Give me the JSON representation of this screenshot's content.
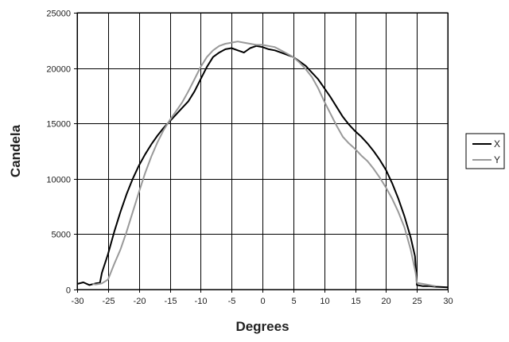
{
  "chart_data": {
    "type": "line",
    "title": "",
    "xlabel": "Degrees",
    "ylabel": "Candela",
    "xlim": [
      -30,
      30
    ],
    "ylim": [
      0,
      25000
    ],
    "x_ticks": [
      -30,
      -25,
      -20,
      -15,
      -10,
      -5,
      0,
      5,
      10,
      15,
      20,
      25,
      30
    ],
    "y_ticks": [
      0,
      5000,
      10000,
      15000,
      20000,
      25000
    ],
    "grid": true,
    "legend_position": "right",
    "series": [
      {
        "name": "X",
        "color": "#000000",
        "points": [
          [
            -30,
            500
          ],
          [
            -29,
            650
          ],
          [
            -28,
            400
          ],
          [
            -27,
            550
          ],
          [
            -26.3,
            600
          ],
          [
            -26,
            1500
          ],
          [
            -25,
            3200
          ],
          [
            -24,
            5200
          ],
          [
            -23,
            7000
          ],
          [
            -22,
            8600
          ],
          [
            -21,
            10000
          ],
          [
            -20,
            11200
          ],
          [
            -19,
            12200
          ],
          [
            -18,
            13100
          ],
          [
            -17,
            13900
          ],
          [
            -16,
            14600
          ],
          [
            -15,
            15200
          ],
          [
            -14,
            15800
          ],
          [
            -13,
            16400
          ],
          [
            -12,
            17000
          ],
          [
            -11,
            17900
          ],
          [
            -10,
            19000
          ],
          [
            -9,
            20100
          ],
          [
            -8,
            21000
          ],
          [
            -7,
            21400
          ],
          [
            -6,
            21700
          ],
          [
            -5,
            21800
          ],
          [
            -4,
            21600
          ],
          [
            -3,
            21400
          ],
          [
            -2,
            21800
          ],
          [
            -1,
            22000
          ],
          [
            0,
            21900
          ],
          [
            1,
            21700
          ],
          [
            2,
            21600
          ],
          [
            3,
            21400
          ],
          [
            4,
            21200
          ],
          [
            5,
            21000
          ],
          [
            6,
            20600
          ],
          [
            7,
            20200
          ],
          [
            8,
            19600
          ],
          [
            9,
            19000
          ],
          [
            10,
            18200
          ],
          [
            11,
            17400
          ],
          [
            12,
            16500
          ],
          [
            13,
            15600
          ],
          [
            14,
            14900
          ],
          [
            15,
            14300
          ],
          [
            16,
            13800
          ],
          [
            17,
            13200
          ],
          [
            18,
            12500
          ],
          [
            19,
            11700
          ],
          [
            20,
            10800
          ],
          [
            21,
            9600
          ],
          [
            22,
            8200
          ],
          [
            23,
            6600
          ],
          [
            24,
            4700
          ],
          [
            24.7,
            3000
          ],
          [
            25,
            400
          ],
          [
            26,
            300
          ],
          [
            27,
            300
          ],
          [
            28,
            250
          ],
          [
            30,
            200
          ]
        ]
      },
      {
        "name": "Y",
        "color": "#999999",
        "points": [
          [
            -27.5,
            500
          ],
          [
            -27,
            450
          ],
          [
            -26,
            550
          ],
          [
            -25,
            900
          ],
          [
            -24,
            2300
          ],
          [
            -23,
            3600
          ],
          [
            -22,
            5200
          ],
          [
            -21,
            7000
          ],
          [
            -20,
            8800
          ],
          [
            -19,
            10500
          ],
          [
            -18,
            12000
          ],
          [
            -17,
            13300
          ],
          [
            -16,
            14400
          ],
          [
            -15,
            15300
          ],
          [
            -14,
            16100
          ],
          [
            -13,
            16900
          ],
          [
            -12,
            17900
          ],
          [
            -11,
            19000
          ],
          [
            -10,
            20100
          ],
          [
            -9,
            21000
          ],
          [
            -8,
            21600
          ],
          [
            -7,
            22000
          ],
          [
            -6,
            22200
          ],
          [
            -5,
            22300
          ],
          [
            -4,
            22400
          ],
          [
            -3,
            22300
          ],
          [
            -2,
            22200
          ],
          [
            -1,
            22100
          ],
          [
            0,
            22100
          ],
          [
            1,
            22000
          ],
          [
            2,
            21900
          ],
          [
            3,
            21600
          ],
          [
            4,
            21300
          ],
          [
            5,
            21000
          ],
          [
            6,
            20500
          ],
          [
            7,
            19900
          ],
          [
            8,
            19200
          ],
          [
            9,
            18200
          ],
          [
            10,
            17000
          ],
          [
            11,
            15900
          ],
          [
            12,
            14800
          ],
          [
            13,
            13800
          ],
          [
            14,
            13200
          ],
          [
            15,
            12700
          ],
          [
            16,
            12100
          ],
          [
            17,
            11600
          ],
          [
            18,
            10900
          ],
          [
            19,
            10100
          ],
          [
            20,
            9200
          ],
          [
            21,
            8200
          ],
          [
            22,
            7000
          ],
          [
            23,
            5600
          ],
          [
            24,
            3600
          ],
          [
            24.8,
            1500
          ],
          [
            25,
            600
          ],
          [
            26,
            500
          ],
          [
            27,
            400
          ],
          [
            28,
            300
          ]
        ]
      }
    ]
  }
}
